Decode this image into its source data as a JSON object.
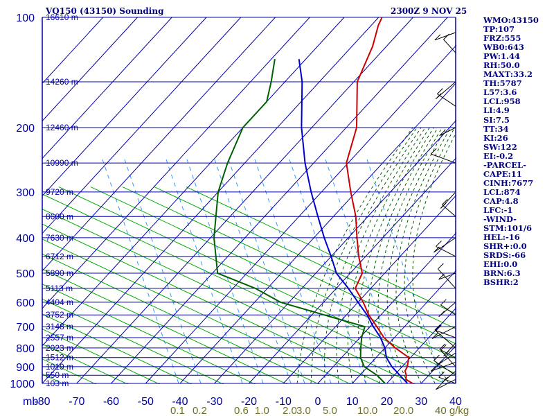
{
  "chart_data": {
    "type": "line",
    "title": "VQ150 (43150) Sounding",
    "time_label": "2300Z  9 NOV 25",
    "x_unit_label": "mb",
    "xlim": [
      -80,
      40
    ],
    "pressure_range": [
      100,
      1000
    ],
    "temperature_ticks": [
      "-80",
      "-70",
      "-60",
      "-50",
      "-40",
      "-30",
      "-20",
      "-10",
      "0",
      "10",
      "20",
      "30",
      "40"
    ],
    "pressure_labels": [
      {
        "p": 100,
        "label": "100"
      },
      {
        "p": 200,
        "label": "200"
      },
      {
        "p": 300,
        "label": "300"
      },
      {
        "p": 400,
        "label": "400"
      },
      {
        "p": 500,
        "label": "500"
      },
      {
        "p": 600,
        "label": "600"
      },
      {
        "p": 700,
        "label": "700"
      },
      {
        "p": 800,
        "label": "800"
      },
      {
        "p": 900,
        "label": "900"
      },
      {
        "p": 1000,
        "label": "1000"
      }
    ],
    "height_labels": [
      {
        "p": 100,
        "label": "16610 m"
      },
      {
        "p": 150,
        "label": "14260 m"
      },
      {
        "p": 200,
        "label": "12460 m"
      },
      {
        "p": 250,
        "label": "10990 m"
      },
      {
        "p": 300,
        "label": "9720 m"
      },
      {
        "p": 350,
        "label": "8600 m"
      },
      {
        "p": 400,
        "label": "7630 m"
      },
      {
        "p": 450,
        "label": "6712 m"
      },
      {
        "p": 500,
        "label": "5890 m"
      },
      {
        "p": 550,
        "label": "5113 m"
      },
      {
        "p": 600,
        "label": "4404 m"
      },
      {
        "p": 650,
        "label": "3752 m"
      },
      {
        "p": 700,
        "label": "3148 m"
      },
      {
        "p": 750,
        "label": "2557 m"
      },
      {
        "p": 800,
        "label": "2023 m"
      },
      {
        "p": 850,
        "label": "1512 m"
      },
      {
        "p": 900,
        "label": "1019 m"
      },
      {
        "p": 950,
        "label": "550 m"
      },
      {
        "p": 1000,
        "label": "103 m"
      }
    ],
    "mixing_ratio_labels": [
      "0.1",
      "0.2",
      "0.6",
      "1.0",
      "2.0",
      "3.0",
      "5.0",
      "10.0",
      "20.0",
      "40 g/kg"
    ],
    "series": [
      {
        "name": "temperature",
        "color": "#cc0000",
        "points": [
          {
            "p": 1000,
            "t": 27.5
          },
          {
            "p": 975,
            "t": 24.5
          },
          {
            "p": 950,
            "t": 23.5
          },
          {
            "p": 925,
            "t": 22.0
          },
          {
            "p": 900,
            "t": 21.5
          },
          {
            "p": 875,
            "t": 20.5
          },
          {
            "p": 850,
            "t": 19.5
          },
          {
            "p": 800,
            "t": 13.0
          },
          {
            "p": 750,
            "t": 7.0
          },
          {
            "p": 700,
            "t": 2.0
          },
          {
            "p": 650,
            "t": -3.5
          },
          {
            "p": 600,
            "t": -8.5
          },
          {
            "p": 550,
            "t": -14.5
          },
          {
            "p": 500,
            "t": -16.5
          },
          {
            "p": 450,
            "t": -22.0
          },
          {
            "p": 400,
            "t": -27.5
          },
          {
            "p": 350,
            "t": -33.5
          },
          {
            "p": 300,
            "t": -41.5
          },
          {
            "p": 250,
            "t": -50.5
          },
          {
            "p": 200,
            "t": -57.0
          },
          {
            "p": 150,
            "t": -69.0
          },
          {
            "p": 120,
            "t": -74.0
          },
          {
            "p": 105,
            "t": -78.0
          },
          {
            "p": 100,
            "t": -79.0
          }
        ]
      },
      {
        "name": "parcel",
        "color": "#0000cc",
        "points": [
          {
            "p": 1000,
            "t": 26.0
          },
          {
            "p": 900,
            "t": 17.0
          },
          {
            "p": 850,
            "t": 13.0
          },
          {
            "p": 800,
            "t": 10.0
          },
          {
            "p": 750,
            "t": 6.0
          },
          {
            "p": 700,
            "t": 1.0
          },
          {
            "p": 650,
            "t": -4.0
          },
          {
            "p": 600,
            "t": -10.0
          },
          {
            "p": 550,
            "t": -16.5
          },
          {
            "p": 500,
            "t": -24.0
          },
          {
            "p": 450,
            "t": -30.0
          },
          {
            "p": 400,
            "t": -37.0
          },
          {
            "p": 350,
            "t": -44.5
          },
          {
            "p": 300,
            "t": -53.0
          },
          {
            "p": 250,
            "t": -62.5
          },
          {
            "p": 200,
            "t": -73.0
          },
          {
            "p": 150,
            "t": -85.0
          },
          {
            "p": 130,
            "t": -92.0
          }
        ]
      },
      {
        "name": "dewpoint",
        "color": "#006000",
        "points": [
          {
            "p": 1000,
            "t": 19.5
          },
          {
            "p": 950,
            "t": 15.0
          },
          {
            "p": 900,
            "t": 9.0
          },
          {
            "p": 850,
            "t": 5.5
          },
          {
            "p": 800,
            "t": 3.0
          },
          {
            "p": 750,
            "t": 0.5
          },
          {
            "p": 700,
            "t": -1.5
          },
          {
            "p": 600,
            "t": -32.5
          },
          {
            "p": 550,
            "t": -43.5
          },
          {
            "p": 500,
            "t": -58.5
          },
          {
            "p": 400,
            "t": -69.0
          },
          {
            "p": 300,
            "t": -80.0
          },
          {
            "p": 250,
            "t": -85.0
          },
          {
            "p": 200,
            "t": -90.0
          },
          {
            "p": 170,
            "t": -90.0
          },
          {
            "p": 150,
            "t": -94.0
          },
          {
            "p": 130,
            "t": -99.0
          }
        ]
      }
    ]
  },
  "indices": [
    "WMO:43150",
    "TP:107",
    "FRZ:555",
    "WB0:643",
    "PW:1.44",
    "RH:50.0",
    "MAXT:33.2",
    "TH:5787",
    "L57:3.6",
    "LCL:958",
    "LI:4.9",
    "SI:7.5",
    "TT:34",
    "KI:26",
    "SW:122",
    "EI:-0.2",
    "-PARCEL-",
    "CAPE:11",
    "CINH:7677",
    "LCL:874",
    "CAP:4.8",
    "LFC:-1",
    "-WIND-",
    "STM:101/6",
    "HEL:-16",
    "SHR+:0.0",
    "SRDS:-66",
    "EHI:0.0",
    "BRN:6.3",
    "BSHR:2"
  ],
  "colors": {
    "isobar": "#0000aa",
    "isotherm": "#0000aa",
    "dry_adiabat": "#00aa00",
    "moist_adiabat": "#006000",
    "mixing_ratio": "#3399ff",
    "wind_barb": "#000000"
  }
}
